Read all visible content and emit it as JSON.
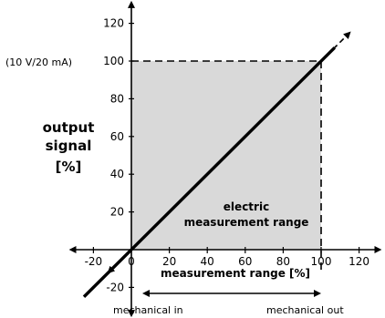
{
  "chart_data": {
    "type": "line",
    "title": "",
    "xlabel": "measurement range [%]",
    "ylabel": [
      "output",
      "signal",
      "[%]"
    ],
    "x_ticks": [
      -20,
      0,
      20,
      40,
      60,
      80,
      100,
      120
    ],
    "x_tick_labels": [
      "-20",
      "0",
      "20",
      "40",
      "60",
      "80",
      "100",
      "120"
    ],
    "y_ticks": [
      -20,
      20,
      40,
      60,
      80,
      100,
      120
    ],
    "y_tick_labels": [
      "-20",
      "20",
      "40",
      "60",
      "80",
      "100",
      "120"
    ],
    "xlim": [
      -30,
      130
    ],
    "ylim": [
      -30,
      130
    ],
    "grid": false,
    "series": [
      {
        "x": [
          -25,
          110
        ],
        "y": [
          -25,
          110
        ],
        "color": "#000000"
      }
    ],
    "shaded_region": {
      "x": [
        0,
        100
      ],
      "y": [
        0,
        100
      ],
      "color": "#d9d9d9"
    },
    "annotations": {
      "y_100_note": "(10 V/20 mA)",
      "region_label": [
        "electric",
        "measurement range"
      ],
      "mechanical_in": "mechanical in",
      "mechanical_out": "mechanical out"
    }
  }
}
